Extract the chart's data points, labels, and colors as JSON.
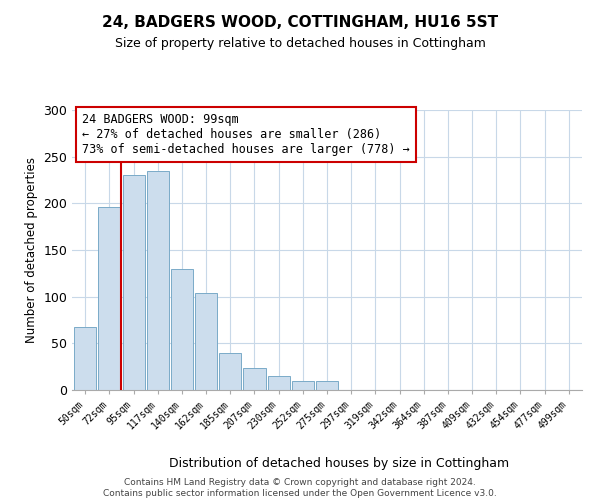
{
  "title": "24, BADGERS WOOD, COTTINGHAM, HU16 5ST",
  "subtitle": "Size of property relative to detached houses in Cottingham",
  "xlabel": "Distribution of detached houses by size in Cottingham",
  "ylabel": "Number of detached properties",
  "bin_labels": [
    "50sqm",
    "72sqm",
    "95sqm",
    "117sqm",
    "140sqm",
    "162sqm",
    "185sqm",
    "207sqm",
    "230sqm",
    "252sqm",
    "275sqm",
    "297sqm",
    "319sqm",
    "342sqm",
    "364sqm",
    "387sqm",
    "409sqm",
    "432sqm",
    "454sqm",
    "477sqm",
    "499sqm"
  ],
  "bar_heights": [
    68,
    196,
    230,
    235,
    130,
    104,
    40,
    24,
    15,
    10,
    10,
    0,
    0,
    0,
    0,
    0,
    0,
    0,
    0,
    0,
    0
  ],
  "bar_color": "#ccdded",
  "bar_edgecolor": "#7aaac8",
  "highlight_line_color": "#cc0000",
  "ylim": [
    0,
    300
  ],
  "yticks": [
    0,
    50,
    100,
    150,
    200,
    250,
    300
  ],
  "annotation_title": "24 BADGERS WOOD: 99sqm",
  "annotation_line1": "← 27% of detached houses are smaller (286)",
  "annotation_line2": "73% of semi-detached houses are larger (778) →",
  "annotation_box_color": "#ffffff",
  "annotation_box_edgecolor": "#cc0000",
  "footer_line1": "Contains HM Land Registry data © Crown copyright and database right 2024.",
  "footer_line2": "Contains public sector information licensed under the Open Government Licence v3.0.",
  "background_color": "#ffffff",
  "grid_color": "#c8d8e8"
}
